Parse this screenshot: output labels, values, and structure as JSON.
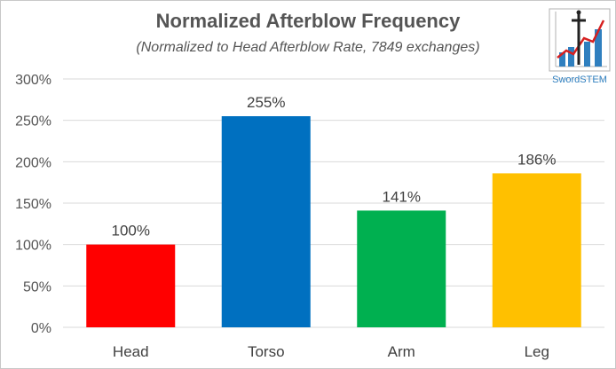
{
  "chart_data": {
    "type": "bar",
    "title": "Normalized Afterblow Frequency",
    "subtitle": "(Normalized to Head Afterblow Rate, 7849 exchanges)",
    "categories": [
      "Head",
      "Torso",
      "Arm",
      "Leg"
    ],
    "values": [
      100,
      255,
      141,
      186
    ],
    "data_labels": [
      "100%",
      "255%",
      "141%",
      "186%"
    ],
    "colors": [
      "#ff0000",
      "#0070c0",
      "#00b050",
      "#ffc000"
    ],
    "ylim": [
      0,
      300
    ],
    "yticks": [
      0,
      50,
      100,
      150,
      200,
      250,
      300
    ],
    "ytick_labels": [
      "0%",
      "50%",
      "100%",
      "150%",
      "200%",
      "250%",
      "300%"
    ],
    "grid": true,
    "legend": "none"
  },
  "logo": {
    "text": "SwordSTEM",
    "icon": "sword-chart-icon"
  }
}
